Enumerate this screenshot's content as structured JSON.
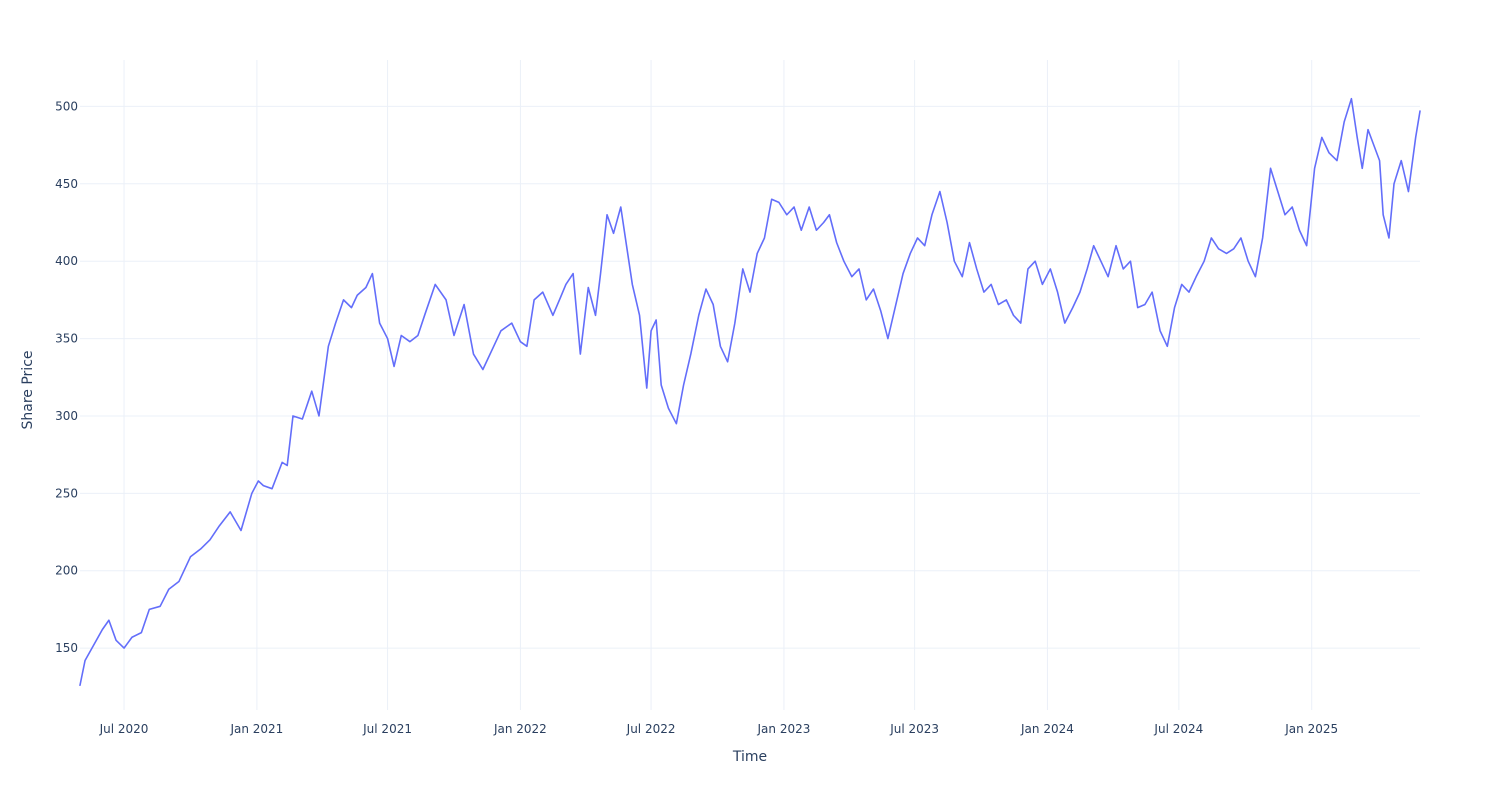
{
  "colors": {
    "line": "#636efa",
    "grid": "#ebf0f8",
    "text": "#2a3f5f",
    "background": "#ffffff"
  },
  "chart_data": {
    "type": "line",
    "title": "",
    "xlabel": "Time",
    "ylabel": "Share Price",
    "grid": true,
    "legend": "none",
    "xlim": [
      "2020-05-01",
      "2025-05-31"
    ],
    "ylim": [
      110,
      530
    ],
    "x_ticks": [
      {
        "date": "2020-07-01",
        "label": "Jul 2020"
      },
      {
        "date": "2021-01-01",
        "label": "Jan 2021"
      },
      {
        "date": "2021-07-01",
        "label": "Jul 2021"
      },
      {
        "date": "2022-01-01",
        "label": "Jan 2022"
      },
      {
        "date": "2022-07-01",
        "label": "Jul 2022"
      },
      {
        "date": "2023-01-01",
        "label": "Jan 2023"
      },
      {
        "date": "2023-07-01",
        "label": "Jul 2023"
      },
      {
        "date": "2024-01-01",
        "label": "Jan 2024"
      },
      {
        "date": "2024-07-01",
        "label": "Jul 2024"
      },
      {
        "date": "2025-01-01",
        "label": "Jan 2025"
      }
    ],
    "y_ticks": [
      {
        "value": 150,
        "label": "150"
      },
      {
        "value": 200,
        "label": "200"
      },
      {
        "value": 250,
        "label": "250"
      },
      {
        "value": 300,
        "label": "300"
      },
      {
        "value": 350,
        "label": "350"
      },
      {
        "value": 400,
        "label": "400"
      },
      {
        "value": 450,
        "label": "450"
      },
      {
        "value": 500,
        "label": "500"
      }
    ],
    "series": [
      {
        "x": [
          "2020-05-01",
          "2020-05-08",
          "2020-05-20",
          "2020-06-01",
          "2020-06-10",
          "2020-06-20",
          "2020-07-01",
          "2020-07-12",
          "2020-07-25",
          "2020-08-05",
          "2020-08-20",
          "2020-09-01",
          "2020-09-15",
          "2020-10-01",
          "2020-10-15",
          "2020-10-28",
          "2020-11-10",
          "2020-11-25",
          "2020-12-10",
          "2020-12-25",
          "2021-01-03",
          "2021-01-10",
          "2021-01-22",
          "2021-02-05",
          "2021-02-12",
          "2021-02-20",
          "2021-03-05",
          "2021-03-18",
          "2021-03-28",
          "2021-04-10",
          "2021-04-20",
          "2021-05-01",
          "2021-05-12",
          "2021-05-20",
          "2021-06-01",
          "2021-06-10",
          "2021-06-20",
          "2021-07-01",
          "2021-07-10",
          "2021-07-20",
          "2021-08-01",
          "2021-08-12",
          "2021-08-22",
          "2021-09-05",
          "2021-09-20",
          "2021-10-01",
          "2021-10-15",
          "2021-10-28",
          "2021-11-10",
          "2021-11-25",
          "2021-12-05",
          "2021-12-20",
          "2022-01-01",
          "2022-01-10",
          "2022-01-20",
          "2022-02-01",
          "2022-02-15",
          "2022-02-25",
          "2022-03-05",
          "2022-03-15",
          "2022-03-25",
          "2022-04-05",
          "2022-04-15",
          "2022-04-22",
          "2022-05-01",
          "2022-05-10",
          "2022-05-20",
          "2022-05-28",
          "2022-06-05",
          "2022-06-15",
          "2022-06-25",
          "2022-07-01",
          "2022-07-08",
          "2022-07-15",
          "2022-07-25",
          "2022-08-05",
          "2022-08-15",
          "2022-08-25",
          "2022-09-05",
          "2022-09-15",
          "2022-09-25",
          "2022-10-05",
          "2022-10-15",
          "2022-10-25",
          "2022-11-05",
          "2022-11-15",
          "2022-11-25",
          "2022-12-05",
          "2022-12-15",
          "2022-12-25",
          "2023-01-05",
          "2023-01-15",
          "2023-01-25",
          "2023-02-05",
          "2023-02-15",
          "2023-02-25",
          "2023-03-05",
          "2023-03-15",
          "2023-03-25",
          "2023-04-05",
          "2023-04-15",
          "2023-04-25",
          "2023-05-05",
          "2023-05-15",
          "2023-05-25",
          "2023-06-05",
          "2023-06-15",
          "2023-06-25",
          "2023-07-05",
          "2023-07-15",
          "2023-07-25",
          "2023-08-05",
          "2023-08-15",
          "2023-08-25",
          "2023-09-05",
          "2023-09-15",
          "2023-09-25",
          "2023-10-05",
          "2023-10-15",
          "2023-10-25",
          "2023-11-05",
          "2023-11-15",
          "2023-11-25",
          "2023-12-05",
          "2023-12-15",
          "2023-12-25",
          "2024-01-05",
          "2024-01-15",
          "2024-01-25",
          "2024-02-05",
          "2024-02-15",
          "2024-02-25",
          "2024-03-05",
          "2024-03-15",
          "2024-03-25",
          "2024-04-05",
          "2024-04-15",
          "2024-04-25",
          "2024-05-05",
          "2024-05-15",
          "2024-05-25",
          "2024-06-05",
          "2024-06-15",
          "2024-06-25",
          "2024-07-05",
          "2024-07-15",
          "2024-07-25",
          "2024-08-05",
          "2024-08-15",
          "2024-08-25",
          "2024-09-05",
          "2024-09-15",
          "2024-09-25",
          "2024-10-05",
          "2024-10-15",
          "2024-10-25",
          "2024-11-05",
          "2024-11-15",
          "2024-11-25",
          "2024-12-05",
          "2024-12-15",
          "2024-12-25",
          "2025-01-05",
          "2025-01-15",
          "2025-01-25",
          "2025-02-05",
          "2025-02-15",
          "2025-02-25",
          "2025-03-05",
          "2025-03-12",
          "2025-03-20",
          "2025-03-28",
          "2025-04-05",
          "2025-04-10",
          "2025-04-18",
          "2025-04-25",
          "2025-05-05",
          "2025-05-15",
          "2025-05-25",
          "2025-05-31"
        ],
        "y": [
          126,
          142,
          152,
          162,
          168,
          155,
          150,
          157,
          160,
          175,
          177,
          188,
          193,
          209,
          214,
          220,
          229,
          238,
          226,
          250,
          258,
          255,
          253,
          270,
          268,
          300,
          298,
          316,
          300,
          345,
          360,
          375,
          370,
          378,
          383,
          392,
          360,
          350,
          332,
          352,
          348,
          352,
          366,
          385,
          375,
          352,
          372,
          340,
          330,
          345,
          355,
          360,
          348,
          345,
          375,
          380,
          365,
          376,
          385,
          392,
          340,
          383,
          365,
          392,
          430,
          418,
          435,
          410,
          385,
          365,
          318,
          355,
          362,
          320,
          305,
          295,
          320,
          340,
          365,
          382,
          372,
          345,
          335,
          360,
          395,
          380,
          405,
          415,
          440,
          438,
          430,
          435,
          420,
          435,
          420,
          425,
          430,
          412,
          400,
          390,
          395,
          375,
          382,
          368,
          350,
          372,
          392,
          405,
          415,
          410,
          430,
          445,
          425,
          400,
          390,
          412,
          395,
          380,
          385,
          372,
          375,
          365,
          360,
          395,
          400,
          385,
          395,
          380,
          360,
          370,
          380,
          395,
          410,
          400,
          390,
          410,
          395,
          400,
          370,
          372,
          380,
          355,
          345,
          370,
          385,
          380,
          390,
          400,
          415,
          408,
          405,
          408,
          415,
          400,
          390,
          415,
          460,
          445,
          430,
          435,
          420,
          410,
          460,
          480,
          470,
          465,
          490,
          505,
          480,
          460,
          485,
          475,
          465,
          430,
          415,
          450,
          465,
          445,
          480,
          497
        ]
      }
    ]
  }
}
